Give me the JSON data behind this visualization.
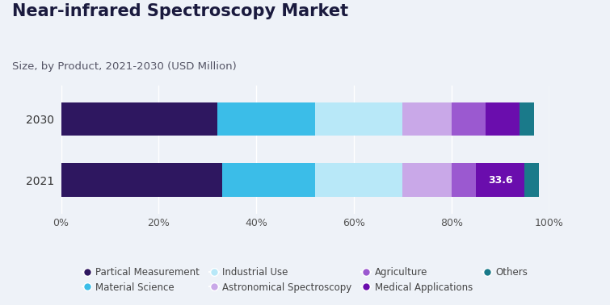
{
  "title": "Near-infrared Spectroscopy Market",
  "subtitle": "Size, by Product, 2021-2030 (USD Million)",
  "years": [
    "2030",
    "2021"
  ],
  "segments": [
    {
      "label": "Partical Measurement",
      "color": "#2e1760",
      "values": [
        32,
        33
      ]
    },
    {
      "label": "Material Science",
      "color": "#3bbde8",
      "values": [
        20,
        19
      ]
    },
    {
      "label": "Industrial Use",
      "color": "#b8e8f8",
      "values": [
        18,
        18
      ]
    },
    {
      "label": "Astronomical Spectroscopy",
      "color": "#c9a8e8",
      "values": [
        10,
        10
      ]
    },
    {
      "label": "Agriculture",
      "color": "#9b59d0",
      "values": [
        7,
        5
      ]
    },
    {
      "label": "Medical Applications",
      "color": "#6a0dad",
      "values": [
        7,
        10
      ]
    },
    {
      "label": "Others",
      "color": "#1a7a8a",
      "values": [
        3,
        3
      ]
    }
  ],
  "annotation_2021": "33.6",
  "annotation_segment_idx": 5,
  "xlim": [
    0,
    100
  ],
  "xtick_labels": [
    "0%",
    "20%",
    "40%",
    "60%",
    "80%",
    "100%"
  ],
  "xtick_values": [
    0,
    20,
    40,
    60,
    80,
    100
  ],
  "background_color": "#eef2f8",
  "bar_height": 0.55,
  "title_fontsize": 15,
  "subtitle_fontsize": 9.5,
  "legend_fontsize": 8.5,
  "tick_fontsize": 9,
  "ytick_fontsize": 10
}
